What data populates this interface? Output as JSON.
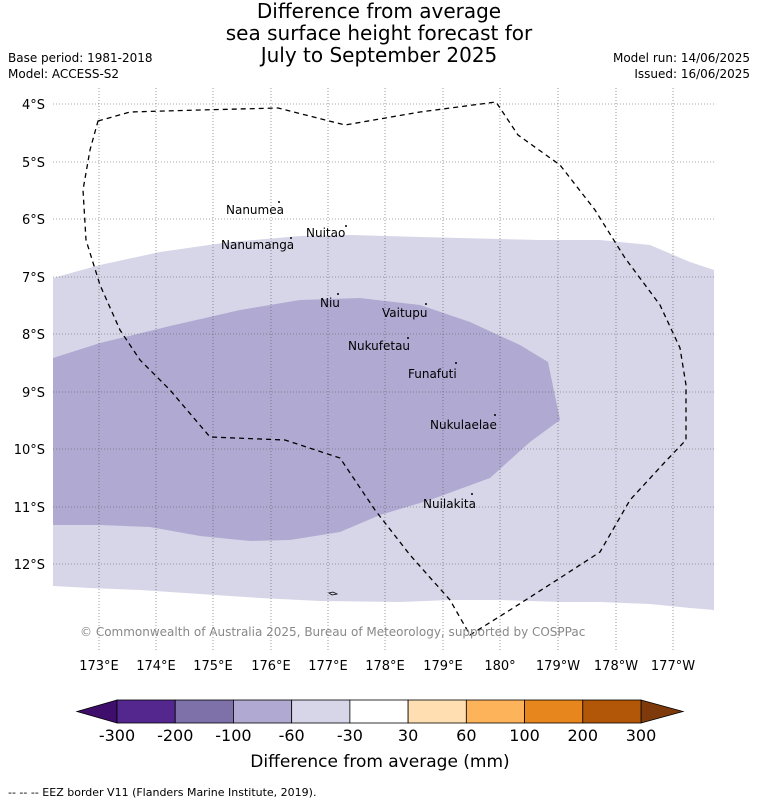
{
  "header": {
    "title_lines": [
      "Difference from average",
      "sea surface height forecast for",
      "July to September 2025"
    ],
    "base_period": "Base period: 1981-2018",
    "model": "Model: ACCESS-S2",
    "model_run": "Model run: 14/06/2025",
    "issued": "Issued: 16/06/2025"
  },
  "map": {
    "lat_labels": [
      "4°S",
      "5°S",
      "6°S",
      "7°S",
      "8°S",
      "9°S",
      "10°S",
      "11°S",
      "12°S"
    ],
    "lon_labels": [
      "173°E",
      "174°E",
      "175°E",
      "176°E",
      "177°E",
      "178°E",
      "179°E",
      "180°",
      "179°W",
      "178°W",
      "177°W"
    ],
    "islands": [
      {
        "name": "Nanumea"
      },
      {
        "name": "Nuitao"
      },
      {
        "name": "Nanumanga"
      },
      {
        "name": "Niu"
      },
      {
        "name": "Vaitupu"
      },
      {
        "name": "Nukufetau"
      },
      {
        "name": "Funafuti"
      },
      {
        "name": "Nukulaelae"
      },
      {
        "name": "Nuilakita"
      }
    ],
    "copyright": "© Commonwealth of Australia 2025, Bureau of Meteorology, supported by COSPPac",
    "fill_colors": {
      "light": "#d6d6e8",
      "medium": "#b0aad2"
    }
  },
  "colorbar": {
    "ticks": [
      "-300",
      "-200",
      "-100",
      "-60",
      "-30",
      "30",
      "60",
      "100",
      "200",
      "300"
    ],
    "segment_colors": [
      "#54278f",
      "#7e71aa",
      "#b0aad2",
      "#d6d6e8",
      "#ffffff",
      "#ffdfb2",
      "#fdb35a",
      "#e6861c",
      "#b25608"
    ],
    "under_color": "#3f0d6b",
    "over_color": "#7e3a0a",
    "title": "Difference from average (mm)"
  },
  "footer": {
    "legend": "-- -- -- EEZ border V11 (Flanders Marine Institute, 2019)."
  }
}
